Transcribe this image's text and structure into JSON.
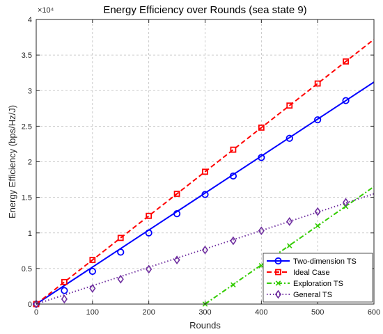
{
  "chart_data": {
    "type": "line",
    "title": "Energy Efficiency over Rounds (sea state 9)",
    "xlabel": "Rounds",
    "ylabel": "Energy Efficiency (bps/Hz/J)",
    "y_exponent_label": "×10⁴",
    "xlim": [
      0,
      600
    ],
    "ylim": [
      0,
      40000
    ],
    "xticks": [
      0,
      100,
      200,
      300,
      400,
      500,
      600
    ],
    "xtick_labels": [
      "0",
      "100",
      "200",
      "300",
      "400",
      "500",
      "600"
    ],
    "yticks": [
      0,
      5000,
      10000,
      15000,
      20000,
      25000,
      30000,
      35000,
      40000
    ],
    "ytick_labels": [
      "0",
      "0.5",
      "1",
      "1.5",
      "2",
      "2.5",
      "3",
      "3.5",
      "4"
    ],
    "grid": true,
    "legend_position": "bottom-right",
    "series": [
      {
        "name": "Two-dimension TS",
        "color": "#0000ff",
        "linestyle": "solid",
        "marker": "circle",
        "line_x": [
          0,
          600
        ],
        "line_y": [
          0,
          31200
        ],
        "x": [
          0,
          50,
          100,
          150,
          200,
          250,
          300,
          350,
          400,
          450,
          500,
          550
        ],
        "y": [
          0,
          1900,
          4600,
          7300,
          10000,
          12700,
          15400,
          18000,
          20600,
          23300,
          25900,
          28600
        ]
      },
      {
        "name": "Ideal Case",
        "color": "#ff0000",
        "linestyle": "dashed",
        "marker": "square",
        "line_x": [
          0,
          600
        ],
        "line_y": [
          0,
          37200
        ],
        "x": [
          0,
          50,
          100,
          150,
          200,
          250,
          300,
          350,
          400,
          450,
          500,
          550
        ],
        "y": [
          0,
          3100,
          6200,
          9300,
          12400,
          15500,
          18600,
          21700,
          24800,
          27900,
          31000,
          34100
        ]
      },
      {
        "name": "Exploration TS",
        "color": "#33cc00",
        "linestyle": "dashdot",
        "marker": "x",
        "line_x": [
          300,
          600
        ],
        "line_y": [
          0,
          16500
        ],
        "x": [
          300,
          350,
          400,
          450,
          500,
          550
        ],
        "y": [
          0,
          2700,
          5400,
          8200,
          11000,
          13700
        ]
      },
      {
        "name": "General TS",
        "color": "#7030a0",
        "linestyle": "dotted",
        "marker": "diamond",
        "line_x": [
          0,
          600
        ],
        "line_y": [
          0,
          15500
        ],
        "x": [
          0,
          50,
          100,
          150,
          200,
          250,
          300,
          350,
          400,
          450,
          500,
          550
        ],
        "y": [
          0,
          700,
          2200,
          3500,
          4900,
          6200,
          7600,
          8900,
          10300,
          11600,
          13000,
          14300
        ]
      }
    ]
  }
}
